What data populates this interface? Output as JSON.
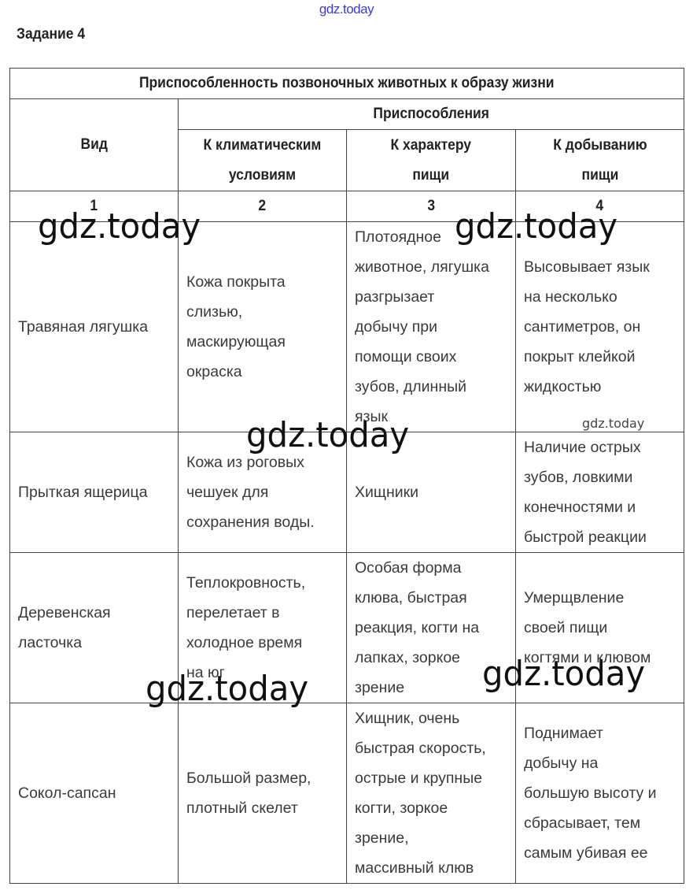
{
  "watermark": "gdz.today",
  "task_title": "Задание 4",
  "table": {
    "title": "Приспособленность позвоночных животных к образу жизни",
    "col_species": "Вид",
    "group_header": "Приспособления",
    "col_climate": "К климатическим\nусловиям",
    "col_food": "К характеру\nпищи",
    "col_getting": "К добыванию\nпищи",
    "numbers": [
      "1",
      "2",
      "3",
      "4"
    ],
    "rows": [
      {
        "species": "Травяная лягушка",
        "climate": "Кожа покрыта\nслизью,\nмаскирующая\nокраска",
        "food": "Плотоядное\nживотное, лягушка\nразгрызает\nдобычу при\nпомощи своих\nзубов, длинный\nязык",
        "getting": "Высовывает язык\nна несколько\nсантиметров, он\nпокрыт клейкой\nжидкостью"
      },
      {
        "species": "Прыткая ящерица",
        "climate": "Кожа из роговых\nчешуек для\nсохранения воды.",
        "food": "Хищники",
        "getting": "Наличие острых\nзубов, ловкими\nконечностями и\nбыстрой реакции"
      },
      {
        "species": "Деревенская\nласточка",
        "climate": "Теплокровность,\nперелетает в\nхолодное время\nна юг",
        "food": "Особая форма\nклюва, быстрая\nреакция, когти на\nлапках, зоркое\nзрение",
        "getting": "Умерщвление\nсвоей пищи\nкогтями и клювом"
      },
      {
        "species": "Сокол-сапсан",
        "climate": "Большой размер,\nплотный скелет",
        "food": "Хищник, очень\nбыстрая скорость,\nострые и крупные\nкогти, зоркое\nзрение,\nмассивный клюв",
        "getting": "Поднимает\nдобычу на\nбольшую высоту и\nсбрасывает, тем\nсамым убивая ее"
      }
    ]
  }
}
